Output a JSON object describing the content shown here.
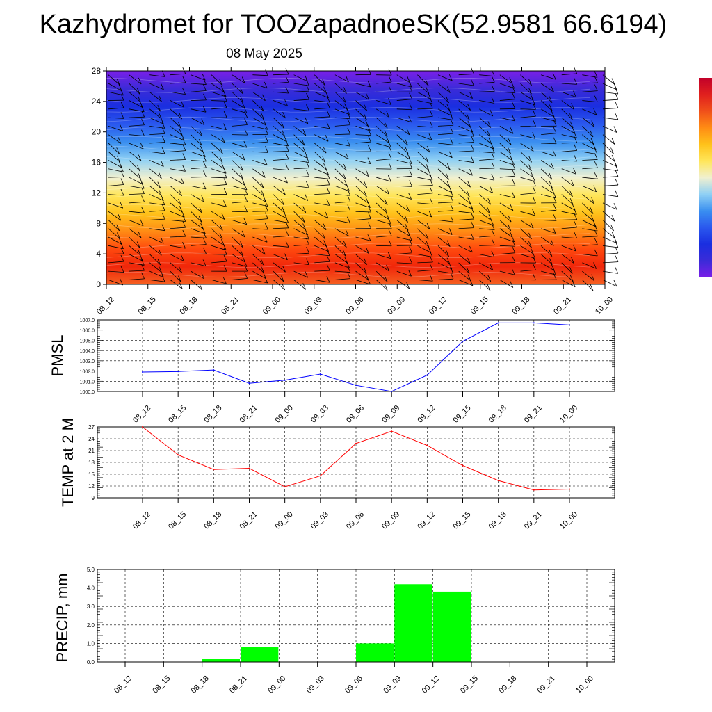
{
  "title": "Kazhydromet for TOOZapadnoeSK(52.9581 66.6194)",
  "subtitle": "08 May 2025",
  "chart_data": [
    {
      "type": "heatmap",
      "name": "time-height-section",
      "categories": [
        "08_12",
        "08_15",
        "08_18",
        "08_21",
        "09_00",
        "09_03",
        "09_06",
        "09_09",
        "09_12",
        "09_15",
        "09_18",
        "09_21",
        "10_00"
      ],
      "y_ticks": [
        0,
        4,
        8,
        12,
        16,
        20,
        24,
        28
      ],
      "ylim": [
        0,
        28
      ],
      "colors": [
        "#7a1fe8",
        "#3b2bd8",
        "#1a2ee0",
        "#2a58ee",
        "#3a8ff0",
        "#8fd0f4",
        "#f0f0d0",
        "#ffe65a",
        "#ffc21a",
        "#ff8c14",
        "#ff4a0e",
        "#f0260a",
        "#f56020"
      ],
      "colorbar_colors": [
        "#c2002a",
        "#e0201e",
        "#f0501a",
        "#ff8c14",
        "#ffc21a",
        "#ffe65a",
        "#f0f0d0",
        "#8fd0f4",
        "#3a8ff0",
        "#2a58ee",
        "#1a2ee0",
        "#3b2bd8",
        "#7a1fe8"
      ]
    },
    {
      "type": "line",
      "name": "pmsl",
      "ylabel": "PMSL",
      "categories": [
        "08_12",
        "08_15",
        "08_18",
        "08_21",
        "09_00",
        "09_03",
        "09_06",
        "09_09",
        "09_12",
        "09_15",
        "09_18",
        "09_21",
        "10_00"
      ],
      "values": [
        1001.9,
        1001.95,
        1002.1,
        1000.8,
        1001.1,
        1001.7,
        1000.6,
        1000.0,
        1001.6,
        1004.9,
        1006.7,
        1006.7,
        1006.5
      ],
      "y_ticks": [
        "1000.0",
        "1001.0",
        "1002.0",
        "1003.0",
        "1004.0",
        "1005.0",
        "1006.0",
        "1007.0"
      ],
      "ylim": [
        1000,
        1007
      ],
      "color": "#0000ff",
      "grid": true
    },
    {
      "type": "line",
      "name": "temp",
      "ylabel": "TEMP at 2 M",
      "categories": [
        "08_12",
        "08_15",
        "08_18",
        "08_21",
        "09_00",
        "09_03",
        "09_06",
        "09_09",
        "09_12",
        "09_15",
        "09_18",
        "09_21",
        "10_00"
      ],
      "values": [
        27.0,
        19.9,
        16.2,
        16.5,
        11.8,
        14.6,
        22.8,
        25.9,
        22.3,
        17.2,
        13.4,
        11.0,
        11.2
      ],
      "y_ticks": [
        "9",
        "12",
        "15",
        "18",
        "21",
        "24",
        "27"
      ],
      "ylim": [
        9,
        27
      ],
      "color": "#ff0000",
      "grid": true
    },
    {
      "type": "bar",
      "name": "precip",
      "ylabel": "PRECIP, mm",
      "categories": [
        "08_12",
        "08_15",
        "08_18",
        "08_21",
        "09_00",
        "09_03",
        "09_06",
        "09_09",
        "09_12",
        "09_15",
        "09_18",
        "09_21",
        "10_00"
      ],
      "values": [
        0,
        0,
        0,
        0.15,
        0.8,
        0,
        0,
        1.0,
        4.2,
        3.8,
        0,
        0,
        0
      ],
      "y_ticks": [
        "0.0",
        "1.0",
        "2.0",
        "3.0",
        "4.0",
        "5.0"
      ],
      "ylim": [
        0,
        5
      ],
      "color": "#00ff00",
      "grid": true
    }
  ]
}
